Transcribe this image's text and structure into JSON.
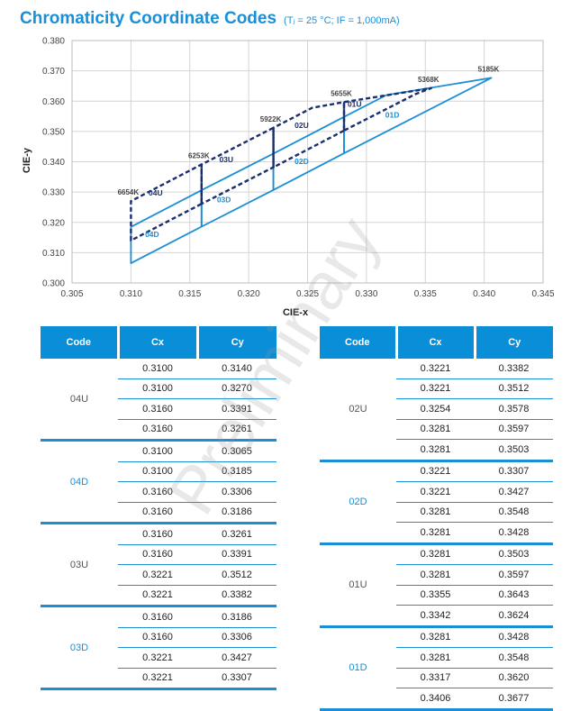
{
  "header": {
    "title": "Chromaticity Coordinate Codes",
    "subtitle": "(Tⱼ = 25 °C; IF = 1,000mA)"
  },
  "chart_data": {
    "type": "scatter",
    "xlabel": "CIE-x",
    "ylabel": "CIE-y",
    "xlim": [
      0.305,
      0.345
    ],
    "ylim": [
      0.3,
      0.38
    ],
    "x_ticks": [
      "0.305",
      "0.310",
      "0.315",
      "0.320",
      "0.325",
      "0.330",
      "0.335",
      "0.340",
      "0.345"
    ],
    "y_ticks": [
      "0.300",
      "0.310",
      "0.320",
      "0.330",
      "0.340",
      "0.350",
      "0.360",
      "0.370",
      "0.380"
    ],
    "grid": true,
    "cct_labels": [
      {
        "text": "6654K",
        "x": 0.31,
        "y": 0.327
      },
      {
        "text": "6253K",
        "x": 0.316,
        "y": 0.3391
      },
      {
        "text": "5922K",
        "x": 0.3221,
        "y": 0.3512
      },
      {
        "text": "5655K",
        "x": 0.3281,
        "y": 0.3597
      },
      {
        "text": "5368K",
        "x": 0.3355,
        "y": 0.3643
      },
      {
        "text": "5185K",
        "x": 0.3406,
        "y": 0.3677
      }
    ],
    "regions": [
      {
        "name": "04U",
        "style": "dashed",
        "points": [
          [
            0.31,
            0.314
          ],
          [
            0.31,
            0.327
          ],
          [
            0.316,
            0.3391
          ],
          [
            0.316,
            0.3261
          ]
        ]
      },
      {
        "name": "04D",
        "style": "solid",
        "points": [
          [
            0.31,
            0.3065
          ],
          [
            0.31,
            0.3185
          ],
          [
            0.316,
            0.3306
          ],
          [
            0.316,
            0.3186
          ]
        ]
      },
      {
        "name": "03U",
        "style": "dashed",
        "points": [
          [
            0.316,
            0.3261
          ],
          [
            0.316,
            0.3391
          ],
          [
            0.3221,
            0.3512
          ],
          [
            0.3221,
            0.3382
          ]
        ]
      },
      {
        "name": "03D",
        "style": "solid",
        "points": [
          [
            0.316,
            0.3186
          ],
          [
            0.316,
            0.3306
          ],
          [
            0.3221,
            0.3427
          ],
          [
            0.3221,
            0.3307
          ]
        ]
      },
      {
        "name": "02U",
        "style": "dashed",
        "points": [
          [
            0.3221,
            0.3382
          ],
          [
            0.3221,
            0.3512
          ],
          [
            0.3254,
            0.3578
          ],
          [
            0.3281,
            0.3597
          ],
          [
            0.3281,
            0.3503
          ]
        ]
      },
      {
        "name": "02D",
        "style": "solid",
        "points": [
          [
            0.3221,
            0.3307
          ],
          [
            0.3221,
            0.3427
          ],
          [
            0.3281,
            0.3548
          ],
          [
            0.3281,
            0.3428
          ]
        ]
      },
      {
        "name": "01U",
        "style": "dashed",
        "points": [
          [
            0.3281,
            0.3503
          ],
          [
            0.3281,
            0.3597
          ],
          [
            0.3355,
            0.3643
          ],
          [
            0.3342,
            0.3624
          ]
        ]
      },
      {
        "name": "01D",
        "style": "solid",
        "points": [
          [
            0.3281,
            0.3428
          ],
          [
            0.3281,
            0.3548
          ],
          [
            0.3317,
            0.362
          ],
          [
            0.3406,
            0.3677
          ]
        ]
      }
    ],
    "region_labels": [
      {
        "text": "04U",
        "x": 0.3115,
        "y": 0.3288,
        "color": "#1b2f6e"
      },
      {
        "text": "04D",
        "x": 0.3112,
        "y": 0.3152,
        "color": "#1a8fd6"
      },
      {
        "text": "03U",
        "x": 0.3175,
        "y": 0.3398,
        "color": "#1b2f6e"
      },
      {
        "text": "03D",
        "x": 0.3173,
        "y": 0.3266,
        "color": "#1a8fd6"
      },
      {
        "text": "02U",
        "x": 0.3239,
        "y": 0.3512,
        "color": "#1b2f6e"
      },
      {
        "text": "02D",
        "x": 0.3239,
        "y": 0.3393,
        "color": "#1a8fd6"
      },
      {
        "text": "01U",
        "x": 0.3284,
        "y": 0.3581,
        "color": "#1b2f6e"
      },
      {
        "text": "01D",
        "x": 0.3316,
        "y": 0.3545,
        "color": "#1a8fd6"
      }
    ]
  },
  "table_headers": [
    "Code",
    "Cx",
    "Cy"
  ],
  "left_table": [
    {
      "code": "04U",
      "blue": false,
      "rows": [
        [
          "0.3100",
          "0.3140"
        ],
        [
          "0.3100",
          "0.3270"
        ],
        [
          "0.3160",
          "0.3391"
        ],
        [
          "0.3160",
          "0.3261"
        ]
      ]
    },
    {
      "code": "04D",
      "blue": true,
      "rows": [
        [
          "0.3100",
          "0.3065"
        ],
        [
          "0.3100",
          "0.3185"
        ],
        [
          "0.3160",
          "0.3306"
        ],
        [
          "0.3160",
          "0.3186"
        ]
      ]
    },
    {
      "code": "03U",
      "blue": false,
      "rows": [
        [
          "0.3160",
          "0.3261"
        ],
        [
          "0.3160",
          "0.3391"
        ],
        [
          "0.3221",
          "0.3512"
        ],
        [
          "0.3221",
          "0.3382"
        ]
      ]
    },
    {
      "code": "03D",
      "blue": true,
      "rows": [
        [
          "0.3160",
          "0.3186"
        ],
        [
          "0.3160",
          "0.3306"
        ],
        [
          "0.3221",
          "0.3427"
        ],
        [
          "0.3221",
          "0.3307"
        ]
      ]
    }
  ],
  "right_table": [
    {
      "code": "02U",
      "blue": false,
      "rows": [
        [
          "0.3221",
          "0.3382"
        ],
        [
          "0.3221",
          "0.3512"
        ],
        [
          "0.3254",
          "0.3578"
        ],
        [
          "0.3281",
          "0.3597"
        ],
        [
          "0.3281",
          "0.3503"
        ]
      ]
    },
    {
      "code": "02D",
      "blue": true,
      "rows": [
        [
          "0.3221",
          "0.3307"
        ],
        [
          "0.3221",
          "0.3427"
        ],
        [
          "0.3281",
          "0.3548"
        ],
        [
          "0.3281",
          "0.3428"
        ]
      ]
    },
    {
      "code": "01U",
      "blue": false,
      "rows": [
        [
          "0.3281",
          "0.3503"
        ],
        [
          "0.3281",
          "0.3597"
        ],
        [
          "0.3355",
          "0.3643"
        ],
        [
          "0.3342",
          "0.3624"
        ]
      ]
    },
    {
      "code": "01D",
      "blue": true,
      "rows": [
        [
          "0.3281",
          "0.3428"
        ],
        [
          "0.3281",
          "0.3548"
        ],
        [
          "0.3317",
          "0.3620"
        ],
        [
          "0.3406",
          "0.3677"
        ]
      ]
    }
  ],
  "watermark": "Preliminary",
  "colors": {
    "accent": "#1a8fd6",
    "header_bg": "#0a8ed8",
    "dashed_line": "#1b2f6e"
  }
}
